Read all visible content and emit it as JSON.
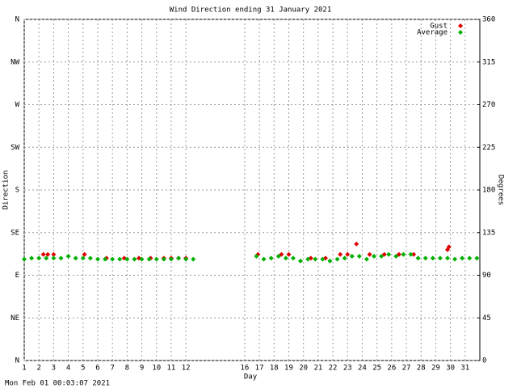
{
  "chart_data": {
    "type": "scatter",
    "title": "Wind Direction ending 31 January 2021",
    "xlabel": "Day",
    "ylabel": "Direction",
    "y2label": "Degrees",
    "footer": "Mon Feb 01 00:03:07 2021",
    "xlim": [
      1,
      32
    ],
    "xticks": [
      1,
      2,
      3,
      4,
      5,
      6,
      7,
      8,
      9,
      10,
      11,
      12,
      16,
      17,
      18,
      19,
      20,
      21,
      22,
      23,
      24,
      25,
      26,
      27,
      28,
      29,
      30,
      31
    ],
    "ylim": [
      0,
      360
    ],
    "yticks": [
      {
        "value": 0,
        "label": "N"
      },
      {
        "value": 45,
        "label": "NE"
      },
      {
        "value": 90,
        "label": "E"
      },
      {
        "value": 135,
        "label": "SE"
      },
      {
        "value": 180,
        "label": "S"
      },
      {
        "value": 225,
        "label": "SW"
      },
      {
        "value": 270,
        "label": "W"
      },
      {
        "value": 315,
        "label": "NW"
      },
      {
        "value": 360,
        "label": "N"
      }
    ],
    "y2lim": [
      0,
      360
    ],
    "y2ticks": [
      0,
      45,
      90,
      135,
      180,
      225,
      270,
      315,
      360
    ],
    "grid": true,
    "series": [
      {
        "name": "Gust",
        "color": "#e00000",
        "x": [
          2.3,
          2.6,
          3.0,
          5.1,
          6.6,
          7.8,
          8.8,
          9.6,
          10.5,
          11.0,
          11.5,
          12.0,
          16.9,
          18.5,
          19.0,
          20.5,
          21.5,
          22.5,
          23.0,
          23.6,
          24.5,
          25.5,
          26.5,
          27.5,
          29.8,
          29.9
        ],
        "values": [
          112,
          112,
          112,
          112,
          108,
          108,
          108,
          108,
          108,
          108,
          108,
          108,
          112,
          112,
          112,
          108,
          108,
          112,
          112,
          123,
          112,
          112,
          112,
          112,
          117,
          120
        ]
      },
      {
        "name": "Average",
        "color": "#00b000",
        "x": [
          1.0,
          1.5,
          2.0,
          2.5,
          3.0,
          3.5,
          4.0,
          4.5,
          5.0,
          5.5,
          6.0,
          6.5,
          7.0,
          7.5,
          8.0,
          8.5,
          9.0,
          9.5,
          10.0,
          10.5,
          11.0,
          11.5,
          12.0,
          12.5,
          16.8,
          17.3,
          17.8,
          18.3,
          18.8,
          19.3,
          19.8,
          20.3,
          20.8,
          21.3,
          21.8,
          22.3,
          22.8,
          23.3,
          23.8,
          24.3,
          24.8,
          25.3,
          25.8,
          26.3,
          26.8,
          27.3,
          27.8,
          28.3,
          28.8,
          29.3,
          29.8,
          30.3,
          30.8,
          31.3,
          31.8
        ],
        "values": [
          107,
          108,
          108,
          108,
          108,
          108,
          110,
          108,
          108,
          108,
          107,
          107,
          107,
          107,
          107,
          107,
          107,
          107,
          107,
          107,
          107,
          108,
          107,
          107,
          110,
          107,
          108,
          110,
          108,
          108,
          105,
          107,
          107,
          107,
          105,
          107,
          108,
          110,
          110,
          107,
          110,
          110,
          112,
          110,
          112,
          112,
          108,
          108,
          108,
          108,
          108,
          107,
          108,
          108,
          108
        ]
      }
    ]
  }
}
